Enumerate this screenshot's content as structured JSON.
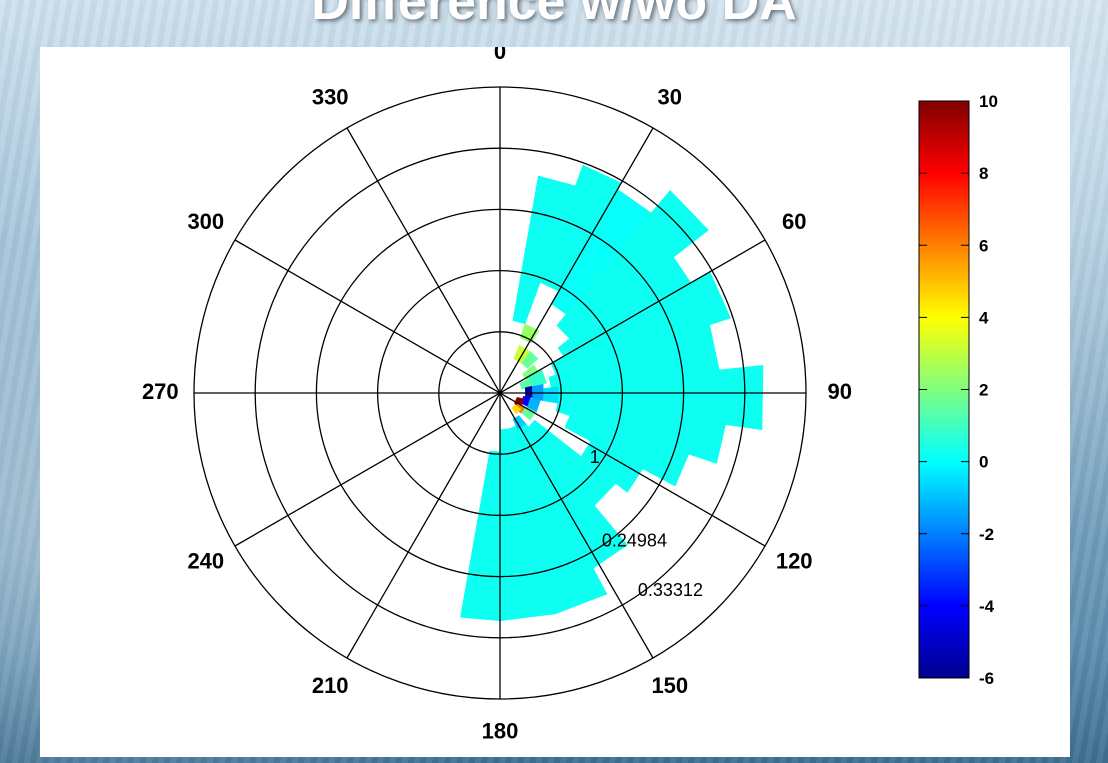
{
  "slide": {
    "title": "Difference w/wo DA"
  },
  "chart_data": {
    "type": "heatmap",
    "projection": "polar",
    "theta_zero": "top",
    "theta_direction": "clockwise",
    "angle_ticks": [
      "0",
      "30",
      "60",
      "90",
      "120",
      "150",
      "180",
      "210",
      "240",
      "270",
      "300",
      "330"
    ],
    "radial_tick_labels": [
      "0.24984",
      "0.33312"
    ],
    "radial_tick_values": [
      0.24984,
      0.33312
    ],
    "radial_tick_angle": 144,
    "rmax": 0.4164,
    "rings": [
      0.08328,
      0.16656,
      0.24984,
      0.33312,
      0.4164
    ],
    "partial_radial_label": "1",
    "colorbar": {
      "min": -6,
      "max": 10,
      "tick_labels": [
        "10",
        "8",
        "6",
        "4",
        "2",
        "0",
        "-2",
        "-4",
        "-6"
      ],
      "tick_values": [
        10,
        8,
        6,
        4,
        2,
        0,
        -2,
        -4,
        -6
      ],
      "colormap": "jet"
    },
    "cells": [
      {
        "t0": 10,
        "t1": 20,
        "r0": 0.1,
        "r1": 0.3,
        "v": 0.2
      },
      {
        "t0": 20,
        "t1": 30,
        "r0": 0.16,
        "r1": 0.33,
        "v": 0.2
      },
      {
        "t0": 30,
        "t1": 40,
        "r0": 0.14,
        "r1": 0.32,
        "v": 0.1
      },
      {
        "t0": 40,
        "t1": 52,
        "r0": 0.12,
        "r1": 0.36,
        "v": 0.2
      },
      {
        "t0": 52,
        "t1": 60,
        "r0": 0.1,
        "r1": 0.3,
        "v": 0.2
      },
      {
        "t0": 60,
        "t1": 72,
        "r0": 0.08,
        "r1": 0.33,
        "v": 0.2
      },
      {
        "t0": 72,
        "t1": 84,
        "r0": 0.07,
        "r1": 0.3,
        "v": 0.2
      },
      {
        "t0": 84,
        "t1": 98,
        "r0": 0.07,
        "r1": 0.36,
        "v": 0.2
      },
      {
        "t0": 98,
        "t1": 108,
        "r0": 0.08,
        "r1": 0.31,
        "v": 0.2
      },
      {
        "t0": 108,
        "t1": 118,
        "r0": 0.1,
        "r1": 0.27,
        "v": 0.2
      },
      {
        "t0": 118,
        "t1": 128,
        "r0": 0.14,
        "r1": 0.22,
        "v": 0.2
      },
      {
        "t0": 128,
        "t1": 140,
        "r0": 0.06,
        "r1": 0.2,
        "v": 0.2
      },
      {
        "t0": 140,
        "t1": 152,
        "r0": 0.05,
        "r1": 0.27,
        "v": 0.2
      },
      {
        "t0": 152,
        "t1": 166,
        "r0": 0.05,
        "r1": 0.31,
        "v": 0.2
      },
      {
        "t0": 166,
        "t1": 180,
        "r0": 0.05,
        "r1": 0.31,
        "v": 0.2
      },
      {
        "t0": 180,
        "t1": 190,
        "r0": 0.08,
        "r1": 0.31,
        "v": 0.2
      },
      {
        "t0": 22,
        "t1": 36,
        "r0": 0.05,
        "r1": 0.07,
        "v": 3.2
      },
      {
        "t0": 20,
        "t1": 32,
        "r0": 0.08,
        "r1": 0.1,
        "v": 2.4
      },
      {
        "t0": 36,
        "t1": 48,
        "r0": 0.05,
        "r1": 0.07,
        "v": 1.6
      },
      {
        "t0": 50,
        "t1": 64,
        "r0": 0.04,
        "r1": 0.06,
        "v": 2.0
      },
      {
        "t0": 64,
        "t1": 80,
        "r0": 0.03,
        "r1": 0.045,
        "v": 1.4
      },
      {
        "t0": 78,
        "t1": 98,
        "r0": 0.035,
        "r1": 0.045,
        "v": -5.5
      },
      {
        "t0": 98,
        "t1": 116,
        "r0": 0.032,
        "r1": 0.042,
        "v": -4.0
      },
      {
        "t0": 104,
        "t1": 126,
        "r0": 0.024,
        "r1": 0.034,
        "v": 10
      },
      {
        "t0": 120,
        "t1": 134,
        "r0": 0.028,
        "r1": 0.04,
        "v": 6.0
      },
      {
        "t0": 128,
        "t1": 142,
        "r0": 0.026,
        "r1": 0.036,
        "v": 4.5
      },
      {
        "t0": 140,
        "t1": 154,
        "r0": 0.04,
        "r1": 0.055,
        "v": -0.8
      },
      {
        "t0": 78,
        "t1": 100,
        "r0": 0.045,
        "r1": 0.06,
        "v": -1.5
      },
      {
        "t0": 100,
        "t1": 118,
        "r0": 0.042,
        "r1": 0.056,
        "v": -1.2
      },
      {
        "t0": 118,
        "t1": 132,
        "r0": 0.04,
        "r1": 0.055,
        "v": 1.5
      },
      {
        "t0": 60,
        "t1": 78,
        "r0": 0.045,
        "r1": 0.065,
        "v": 0.8
      },
      {
        "t0": 84,
        "t1": 100,
        "r0": 0.06,
        "r1": 0.08,
        "v": -0.5
      }
    ]
  }
}
